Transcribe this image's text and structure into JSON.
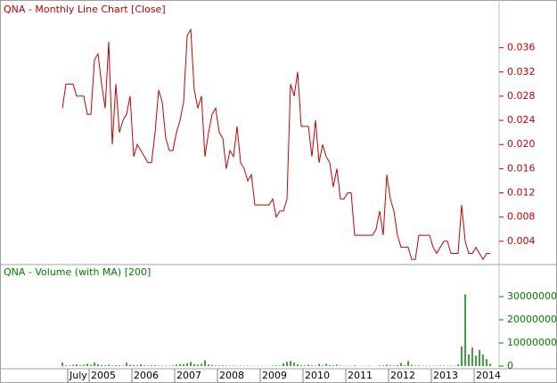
{
  "chart_data": [
    {
      "type": "line",
      "title": "QNA - Monthly Line Chart [Close]",
      "color": "#cc0000",
      "x": [
        2004.375,
        2004.458,
        2004.542,
        2004.625,
        2004.708,
        2004.792,
        2004.875,
        2004.958,
        2005.042,
        2005.125,
        2005.208,
        2005.292,
        2005.375,
        2005.458,
        2005.542,
        2005.625,
        2005.708,
        2005.792,
        2005.875,
        2005.958,
        2006.042,
        2006.125,
        2006.208,
        2006.292,
        2006.375,
        2006.458,
        2006.542,
        2006.625,
        2006.708,
        2006.792,
        2006.875,
        2006.958,
        2007.042,
        2007.125,
        2007.208,
        2007.292,
        2007.375,
        2007.458,
        2007.542,
        2007.625,
        2007.708,
        2007.792,
        2007.875,
        2007.958,
        2008.042,
        2008.125,
        2008.208,
        2008.292,
        2008.375,
        2008.458,
        2008.542,
        2008.625,
        2008.708,
        2008.792,
        2008.875,
        2008.958,
        2009.042,
        2009.125,
        2009.208,
        2009.292,
        2009.375,
        2009.458,
        2009.542,
        2009.625,
        2009.708,
        2009.792,
        2009.875,
        2009.958,
        2010.042,
        2010.125,
        2010.208,
        2010.292,
        2010.375,
        2010.458,
        2010.542,
        2010.625,
        2010.708,
        2010.792,
        2010.875,
        2010.958,
        2011.042,
        2011.125,
        2011.208,
        2011.292,
        2011.375,
        2011.458,
        2011.542,
        2011.625,
        2011.708,
        2011.792,
        2011.875,
        2011.958,
        2012.042,
        2012.125,
        2012.208,
        2012.292,
        2012.375,
        2012.458,
        2012.542,
        2012.625,
        2012.708,
        2012.792,
        2012.875,
        2012.958,
        2013.042,
        2013.125,
        2013.208,
        2013.292,
        2013.375,
        2013.458,
        2013.542,
        2013.625,
        2013.708,
        2013.792,
        2013.875,
        2013.958,
        2014.042,
        2014.125,
        2014.208,
        2014.292,
        2014.375
      ],
      "values": [
        0.026,
        0.03,
        0.03,
        0.03,
        0.028,
        0.028,
        0.028,
        0.025,
        0.025,
        0.034,
        0.035,
        0.03,
        0.026,
        0.037,
        0.02,
        0.03,
        0.022,
        0.024,
        0.025,
        0.028,
        0.018,
        0.02,
        0.019,
        0.018,
        0.017,
        0.017,
        0.022,
        0.029,
        0.027,
        0.021,
        0.019,
        0.019,
        0.022,
        0.024,
        0.027,
        0.038,
        0.039,
        0.029,
        0.026,
        0.028,
        0.018,
        0.022,
        0.025,
        0.026,
        0.022,
        0.021,
        0.016,
        0.019,
        0.018,
        0.023,
        0.017,
        0.016,
        0.014,
        0.015,
        0.01,
        0.01,
        0.01,
        0.01,
        0.01,
        0.011,
        0.008,
        0.009,
        0.009,
        0.011,
        0.03,
        0.028,
        0.032,
        0.023,
        0.023,
        0.023,
        0.018,
        0.024,
        0.017,
        0.02,
        0.018,
        0.017,
        0.013,
        0.016,
        0.011,
        0.011,
        0.012,
        0.012,
        0.005,
        0.005,
        0.005,
        0.005,
        0.005,
        0.005,
        0.006,
        0.009,
        0.005,
        0.015,
        0.011,
        0.009,
        0.005,
        0.003,
        0.003,
        0.003,
        0.001,
        0.001,
        0.005,
        0.005,
        0.005,
        0.005,
        0.003,
        0.002,
        0.003,
        0.004,
        0.004,
        0.002,
        0.002,
        0.002,
        0.01,
        0.004,
        0.002,
        0.002,
        0.003,
        0.002,
        0.001,
        0.002,
        0.002
      ],
      "xlim": [
        2002.958,
        2014.583
      ],
      "ylim": [
        0.0003,
        0.0436
      ],
      "yticks": [
        0.004,
        0.008,
        0.012,
        0.016,
        {
          "value": 0.02,
          "label": "0.020"
        },
        0.024,
        0.028,
        0.032,
        0.036
      ]
    },
    {
      "type": "bar",
      "title": "QNA - Volume (with MA) [200]",
      "color": "#008000",
      "values": [
        1500000,
        300000,
        200000,
        500000,
        800000,
        300000,
        600000,
        1000000,
        500000,
        1500000,
        800000,
        400000,
        300000,
        600000,
        200000,
        400000,
        300000,
        200000,
        1500000,
        600000,
        400000,
        300000,
        800000,
        300000,
        200000,
        300000,
        400000,
        200000,
        100000,
        200000,
        100000,
        300000,
        600000,
        900000,
        800000,
        1200000,
        1800000,
        800000,
        600000,
        1000000,
        2500000,
        700000,
        500000,
        300000,
        200000,
        300000,
        200000,
        100000,
        200000,
        100000,
        200000,
        100000,
        200000,
        100000,
        100000,
        100000,
        200000,
        100000,
        100000,
        200000,
        300000,
        200000,
        1200000,
        1800000,
        2200000,
        1500000,
        800000,
        400000,
        300000,
        600000,
        300000,
        200000,
        900000,
        300000,
        1000000,
        400000,
        300000,
        600000,
        200000,
        200000,
        100000,
        100000,
        300000,
        100000,
        100000,
        100000,
        200000,
        100000,
        100000,
        200000,
        300000,
        600000,
        300000,
        200000,
        400000,
        1300000,
        300000,
        2200000,
        500000,
        200000,
        300000,
        200000,
        100000,
        200000,
        100000,
        200000,
        300000,
        200000,
        100000,
        200000,
        100000,
        700000,
        8500000,
        31000000,
        5000000,
        8000000,
        4500000,
        7000000,
        5000000,
        3000000,
        1000000
      ],
      "ylim": [
        0,
        43500000
      ],
      "yticks": [
        0,
        10000000,
        20000000,
        30000000
      ],
      "xticks": [
        {
          "value": 2004.5,
          "label": "July"
        },
        2005,
        2006,
        2007,
        2008,
        2009,
        2010,
        2011,
        2012,
        2013,
        2014
      ]
    }
  ]
}
